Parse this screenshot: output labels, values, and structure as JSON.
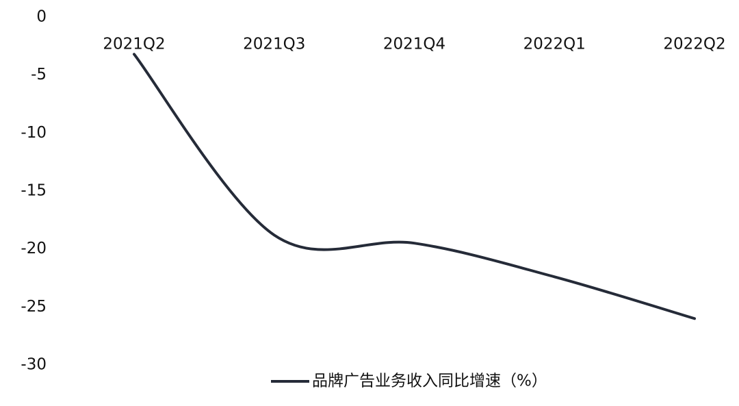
{
  "chart_data": {
    "type": "line",
    "categories": [
      "2021Q2",
      "2021Q3",
      "2021Q4",
      "2022Q1",
      "2022Q2"
    ],
    "series": [
      {
        "name": "品牌广告业务收入同比增速（%）",
        "color": "#252b38",
        "values": [
          -3.2,
          -18.8,
          -19.5,
          -22.4,
          -26.0
        ]
      }
    ],
    "ylim": [
      -30,
      0
    ],
    "yticks": [
      0,
      -5,
      -10,
      -15,
      -20,
      -25,
      -30
    ],
    "grid": false,
    "smooth": true,
    "legend": "bottom"
  }
}
